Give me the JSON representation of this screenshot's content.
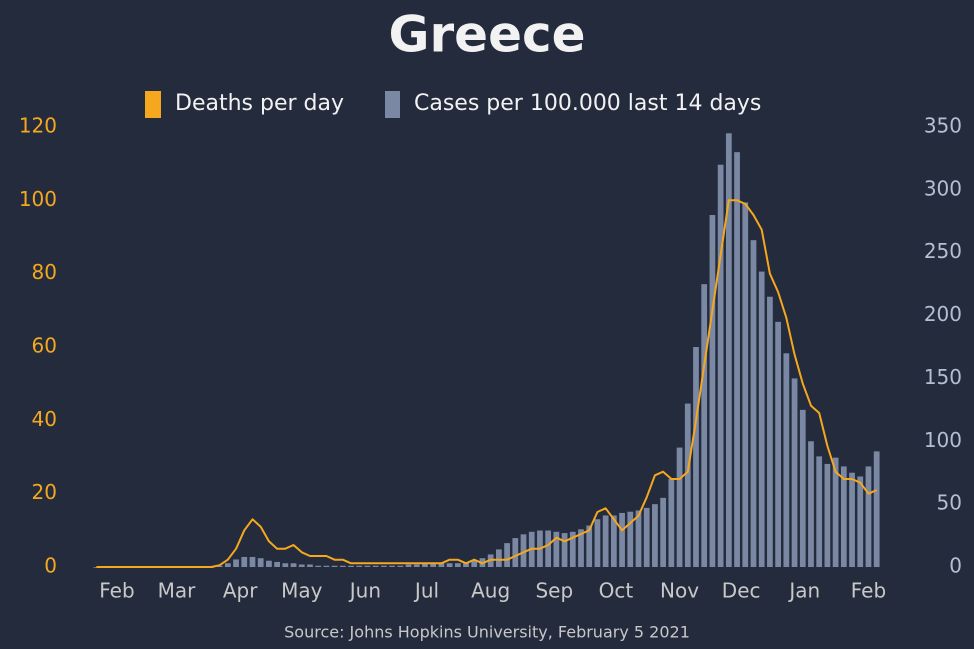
{
  "chart_data": {
    "type": "combo",
    "title": "Greece",
    "source": "Source: Johns Hopkins University, February 5 2021",
    "x": [
      0,
      4,
      8,
      12,
      16,
      20,
      24,
      28,
      32,
      36,
      40,
      44,
      48,
      52,
      56,
      60,
      64,
      68,
      72,
      76,
      80,
      84,
      88,
      92,
      96,
      100,
      104,
      108,
      112,
      116,
      120,
      124,
      128,
      132,
      136,
      140,
      144,
      148,
      152,
      156,
      160,
      164,
      168,
      172,
      176,
      180,
      184,
      188,
      192,
      196,
      200,
      204,
      208,
      212,
      216,
      220,
      224,
      228,
      232,
      236,
      240,
      244,
      248,
      252,
      256,
      260,
      264,
      268,
      272,
      276,
      280,
      284,
      288,
      292,
      296,
      300,
      304,
      308,
      312,
      316,
      320,
      324,
      328,
      332,
      336,
      340,
      344,
      348,
      352,
      356,
      360,
      364,
      368,
      372,
      376,
      380
    ],
    "series": [
      {
        "name": "Deaths per day",
        "type": "line",
        "axis": "y",
        "color": "#f5a81e",
        "values": [
          0,
          0,
          0,
          0,
          0,
          0,
          0,
          0,
          0,
          0,
          0,
          0,
          0,
          0,
          0,
          0.5,
          2,
          5,
          10,
          13,
          11,
          7,
          5,
          5,
          6,
          4,
          3,
          3,
          3,
          2,
          2,
          1,
          1,
          1,
          1,
          1,
          1,
          1,
          1,
          1,
          1,
          1,
          1,
          2,
          2,
          1,
          2,
          1,
          2,
          2,
          2,
          3,
          4,
          5,
          5,
          6,
          8,
          7,
          8,
          9,
          10,
          15,
          16,
          13,
          10,
          12,
          14,
          19,
          25,
          26,
          24,
          24,
          26,
          40,
          55,
          70,
          85,
          100,
          100,
          99,
          96,
          92,
          80,
          75,
          68,
          58,
          50,
          44,
          42,
          33,
          26,
          24,
          24,
          23,
          20,
          21
        ]
      },
      {
        "name": "Cases per 100.000 last 14 days",
        "type": "bar",
        "axis": "y2",
        "color": "#7b88a3",
        "values": [
          0,
          0,
          0,
          0,
          0,
          0,
          0,
          0,
          0,
          0,
          0,
          0,
          0,
          0,
          0,
          1,
          3,
          6,
          8,
          8,
          7,
          5,
          4,
          3,
          3,
          2,
          2,
          1,
          1,
          1,
          1,
          1,
          1,
          1,
          1,
          1,
          1,
          1,
          2,
          2,
          3,
          3,
          3,
          3,
          3,
          4,
          5,
          7,
          10,
          14,
          19,
          23,
          26,
          28,
          29,
          29,
          28,
          27,
          28,
          30,
          33,
          38,
          41,
          41,
          43,
          44,
          45,
          47,
          50,
          55,
          70,
          95,
          130,
          175,
          225,
          280,
          320,
          345,
          330,
          290,
          260,
          235,
          215,
          195,
          170,
          150,
          125,
          100,
          88,
          82,
          87,
          80,
          75,
          72,
          80,
          92
        ]
      }
    ],
    "xlim": [
      -8,
      386
    ],
    "xticks": [
      {
        "value": 10,
        "label": "Feb"
      },
      {
        "value": 39,
        "label": "Mar"
      },
      {
        "value": 70,
        "label": "Apr"
      },
      {
        "value": 100,
        "label": "May"
      },
      {
        "value": 131,
        "label": "Jun"
      },
      {
        "value": 161,
        "label": "Jul"
      },
      {
        "value": 192,
        "label": "Aug"
      },
      {
        "value": 223,
        "label": "Sep"
      },
      {
        "value": 253,
        "label": "Oct"
      },
      {
        "value": 284,
        "label": "Nov"
      },
      {
        "value": 314,
        "label": "Dec"
      },
      {
        "value": 345,
        "label": "Jan"
      },
      {
        "value": 376,
        "label": "Feb"
      }
    ],
    "ylim": [
      0,
      120
    ],
    "yticks": [
      0,
      20,
      40,
      60,
      80,
      100,
      120
    ],
    "y2lim": [
      0,
      350
    ],
    "y2ticks": [
      0,
      50,
      100,
      150,
      200,
      250,
      300,
      350
    ]
  }
}
